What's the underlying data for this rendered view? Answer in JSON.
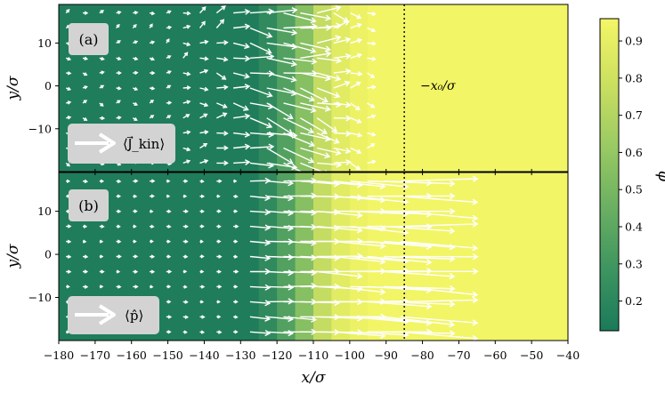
{
  "chart_data": {
    "type": "heatmap",
    "x_range": [
      -180,
      -40
    ],
    "x_ticks": [
      -180,
      -170,
      -160,
      -150,
      -140,
      -130,
      -120,
      -110,
      -100,
      -90,
      -80,
      -70,
      -60,
      -50,
      -40
    ],
    "xlabel": "x/σ",
    "ylabel": "y/σ",
    "vline_x": -85,
    "vline_label": "−x₀/σ",
    "colorbar": {
      "label": "φ",
      "range": [
        0.12,
        0.96
      ],
      "ticks": [
        0.2,
        0.3,
        0.4,
        0.5,
        0.6,
        0.7,
        0.8,
        0.9
      ],
      "colors": [
        "#1b7a5a",
        "#3e9560",
        "#6cb062",
        "#9ccb63",
        "#cde060",
        "#f4f666"
      ]
    },
    "phi_profile": {
      "x_bin_edges": [
        -180,
        -125,
        -120,
        -115,
        -110,
        -105,
        -100,
        -95,
        -40
      ],
      "values": [
        0.14,
        0.22,
        0.36,
        0.55,
        0.76,
        0.88,
        0.93,
        0.95
      ]
    },
    "panels": [
      {
        "tag": "(a)",
        "y_range": [
          -20,
          19
        ],
        "y_ticks": [
          -10,
          0,
          10
        ],
        "legend_label": "⟨J⃗_kin⟩",
        "arrow_field": "kinetic current, largest around x ≈ −125 to −100, pointing mostly to the right with a downward tilt below y ≈ 0"
      },
      {
        "tag": "(b)",
        "y_range": [
          -20,
          19
        ],
        "y_ticks": [
          -10,
          0,
          10
        ],
        "legend_label": "⟨p̂⟩",
        "arrow_field": "polarization, nearly zero for x < −130, long rightward arrows between x ≈ −125 and −80"
      }
    ]
  }
}
